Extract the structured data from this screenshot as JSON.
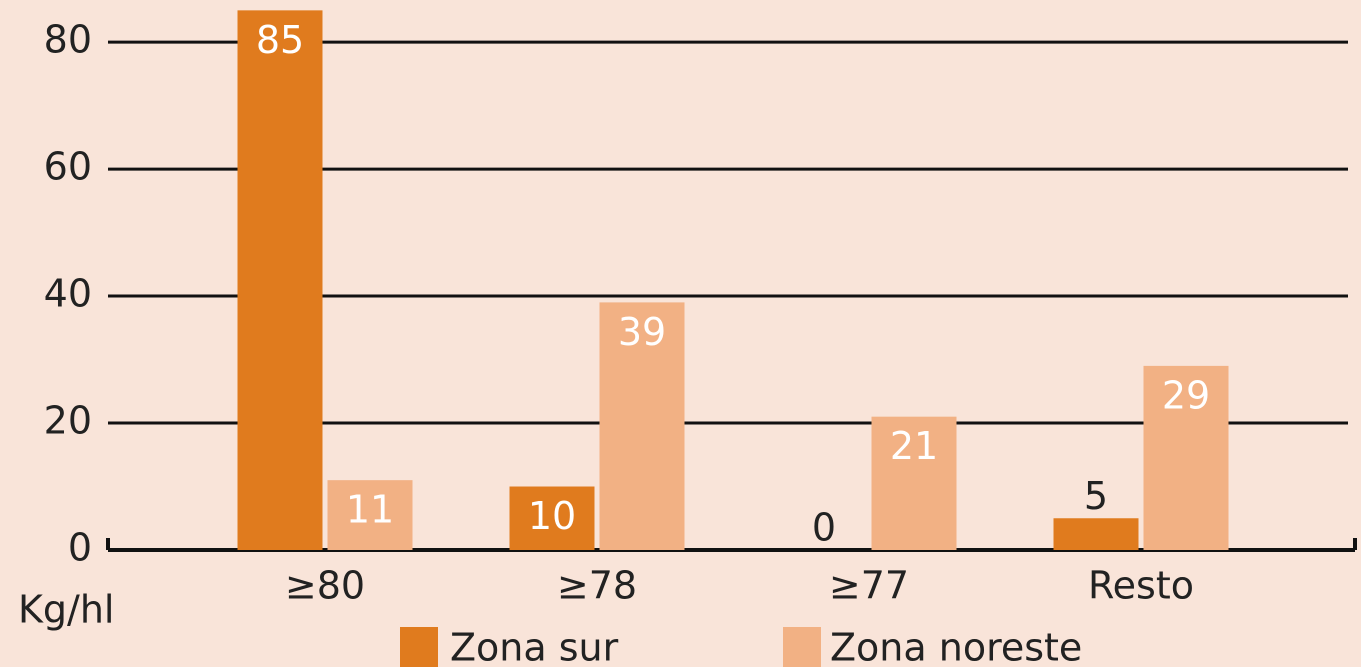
{
  "chart_data": {
    "type": "bar",
    "categories": [
      "≥80",
      "≥78",
      "≥77",
      "Resto"
    ],
    "series": [
      {
        "name": "Zona sur",
        "color": "#e07b1e",
        "values": [
          85,
          10,
          0,
          5
        ]
      },
      {
        "name": "Zona noreste",
        "color": "#f2b184",
        "values": [
          11,
          39,
          21,
          29
        ]
      }
    ],
    "x_label": "Kg/hl",
    "ylim": [
      0,
      86
    ],
    "yticks": [
      0,
      20,
      40,
      60,
      80
    ],
    "grid": true,
    "legend": "bottom"
  }
}
